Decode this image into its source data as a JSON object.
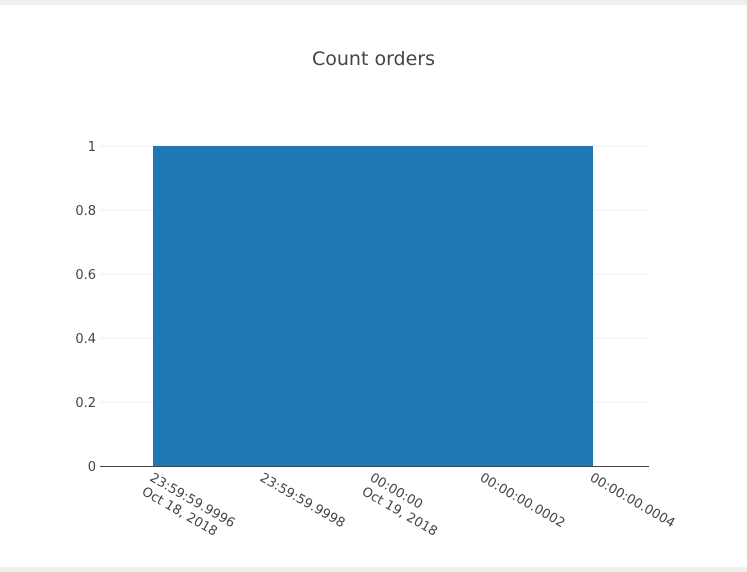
{
  "chart_data": {
    "type": "bar",
    "title": "Count orders",
    "xlabel": "",
    "ylabel": "",
    "ylim": [
      0,
      1
    ],
    "y_ticks": [
      "0",
      "0.2",
      "0.4",
      "0.6",
      "0.8",
      "1"
    ],
    "x_ticks": [
      [
        "23:59:59.9996",
        "Oct 18, 2018"
      ],
      [
        "23:59:59.9998"
      ],
      [
        "00:00:00",
        "Oct 19, 2018"
      ],
      [
        "00:00:00.0002"
      ],
      [
        "00:00:00.0004"
      ]
    ],
    "bars": [
      {
        "x": "2018-10-19 00:00:00",
        "value": 1
      }
    ],
    "grid": true,
    "colors": {
      "bar": "#1f77b4",
      "grid": "#eeeeee",
      "axis": "#444444"
    }
  }
}
